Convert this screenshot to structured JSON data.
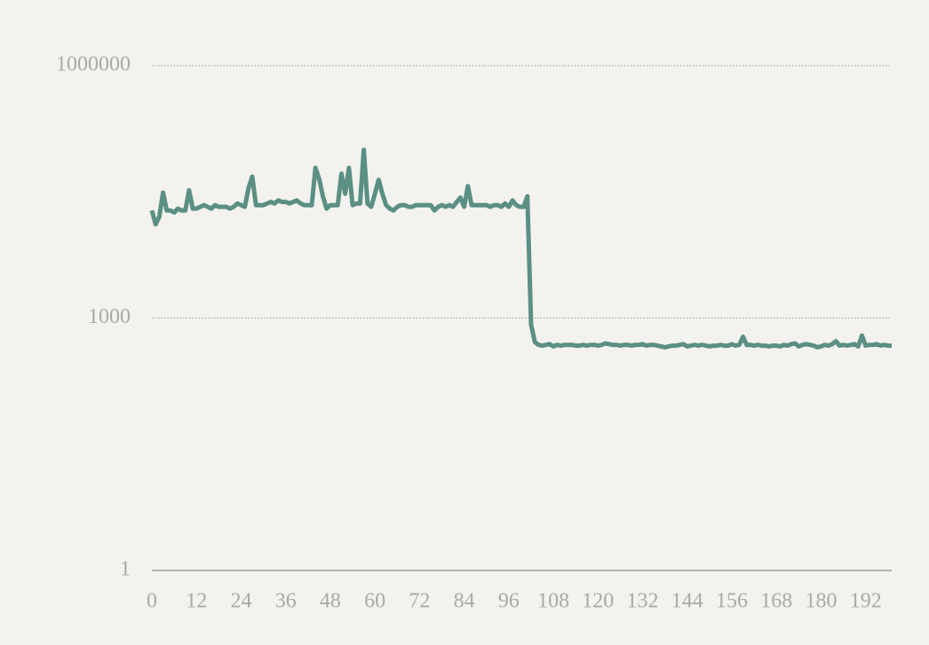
{
  "chart_data": {
    "type": "line",
    "log_y": true,
    "color": "#5b8f84",
    "grid": true,
    "ylim": [
      1,
      1000000
    ],
    "yticks": [
      1,
      1000,
      1000000
    ],
    "xlim": [
      0,
      199
    ],
    "xticks": [
      0,
      12,
      24,
      36,
      48,
      60,
      72,
      84,
      96,
      108,
      120,
      132,
      144,
      156,
      168,
      180,
      192
    ],
    "values": [
      19000,
      13000,
      16000,
      31000,
      19000,
      19000,
      18000,
      20000,
      19000,
      19000,
      33000,
      20000,
      20000,
      21000,
      22000,
      21000,
      20000,
      22000,
      21000,
      21000,
      21000,
      20000,
      21000,
      23000,
      22000,
      21000,
      35000,
      48000,
      22000,
      22000,
      22000,
      23000,
      24000,
      23000,
      25000,
      24000,
      24000,
      23000,
      24000,
      25000,
      23000,
      22000,
      22000,
      22000,
      61000,
      45000,
      28000,
      20000,
      22000,
      22000,
      22000,
      52000,
      30000,
      61000,
      22000,
      23000,
      23000,
      100000,
      23000,
      21000,
      30000,
      44000,
      30000,
      22000,
      20000,
      19000,
      21000,
      22000,
      22000,
      21000,
      21000,
      22000,
      22000,
      22000,
      22000,
      22000,
      19000,
      21000,
      22000,
      21000,
      22000,
      21000,
      24000,
      27000,
      21000,
      37000,
      22000,
      22000,
      22000,
      22000,
      22000,
      21000,
      22000,
      22000,
      21000,
      23000,
      21000,
      25000,
      22000,
      21000,
      21000,
      28000,
      840,
      520,
      480,
      470,
      480,
      490,
      460,
      480,
      470,
      480,
      480,
      480,
      470,
      470,
      480,
      470,
      480,
      480,
      470,
      480,
      500,
      490,
      480,
      480,
      470,
      480,
      480,
      470,
      480,
      480,
      490,
      470,
      480,
      480,
      470,
      460,
      450,
      460,
      470,
      470,
      480,
      490,
      460,
      470,
      480,
      470,
      480,
      470,
      460,
      470,
      470,
      480,
      470,
      470,
      490,
      470,
      480,
      600,
      480,
      480,
      470,
      480,
      470,
      470,
      460,
      470,
      470,
      460,
      480,
      470,
      490,
      500,
      460,
      480,
      490,
      480,
      470,
      450,
      460,
      480,
      470,
      490,
      530,
      470,
      480,
      470,
      480,
      490,
      460,
      620,
      470,
      480,
      480,
      490,
      470,
      480,
      470,
      470
    ]
  }
}
